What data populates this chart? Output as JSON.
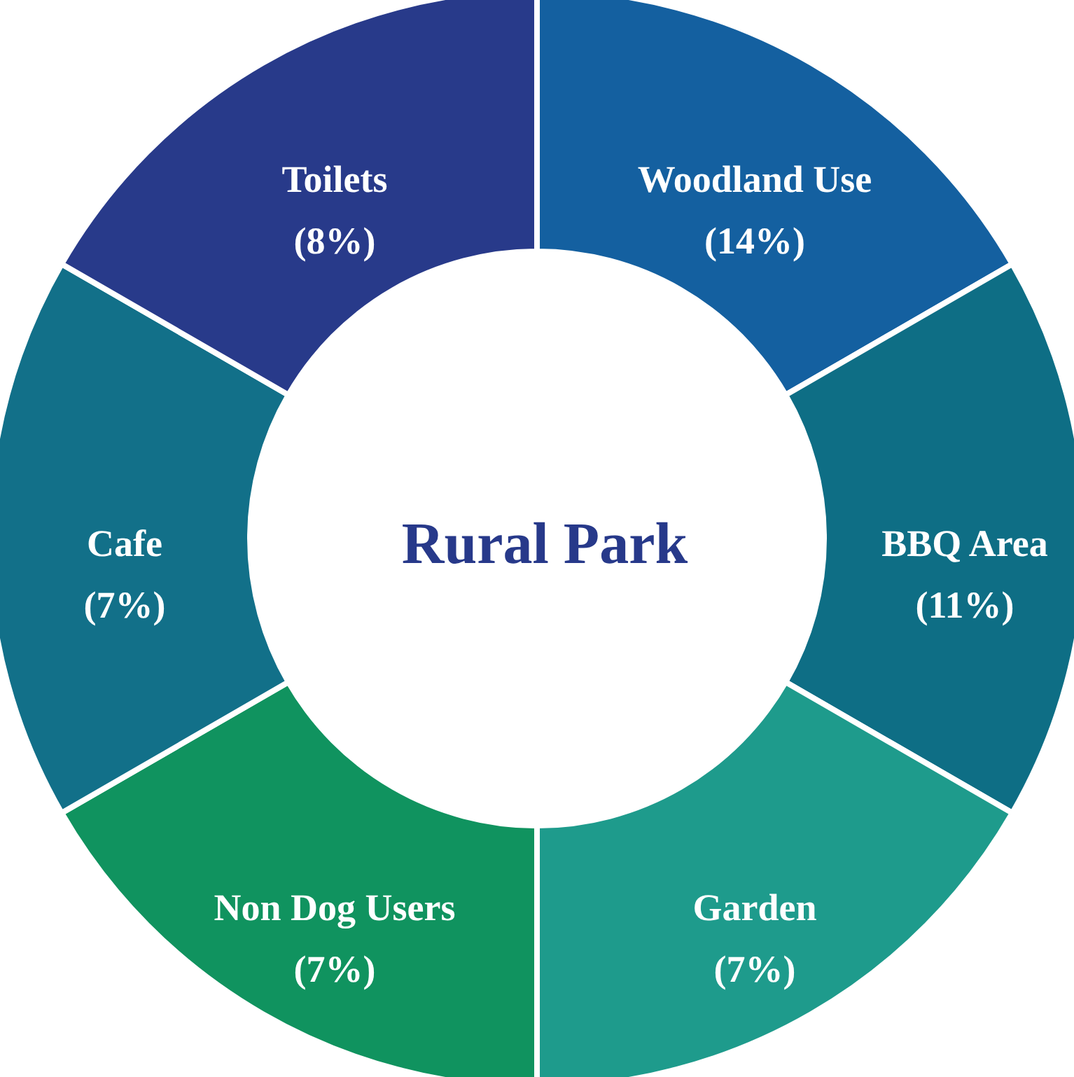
{
  "chart_data": {
    "type": "other",
    "title": "Rural Park",
    "categories": [
      "Woodland Use",
      "BBQ Area",
      "Garden",
      "Non Dog Users",
      "Cafe",
      "Toilets"
    ],
    "values": [
      14,
      11,
      7,
      7,
      7,
      8
    ],
    "value_labels": [
      "(14%)",
      "(11%)",
      "(7%)",
      "(7%)",
      "(7%)",
      "(8%)"
    ],
    "colors": [
      "#1460a0",
      "#0e6e85",
      "#1e9b8c",
      "#10935f",
      "#127089",
      "#283a8a"
    ]
  }
}
